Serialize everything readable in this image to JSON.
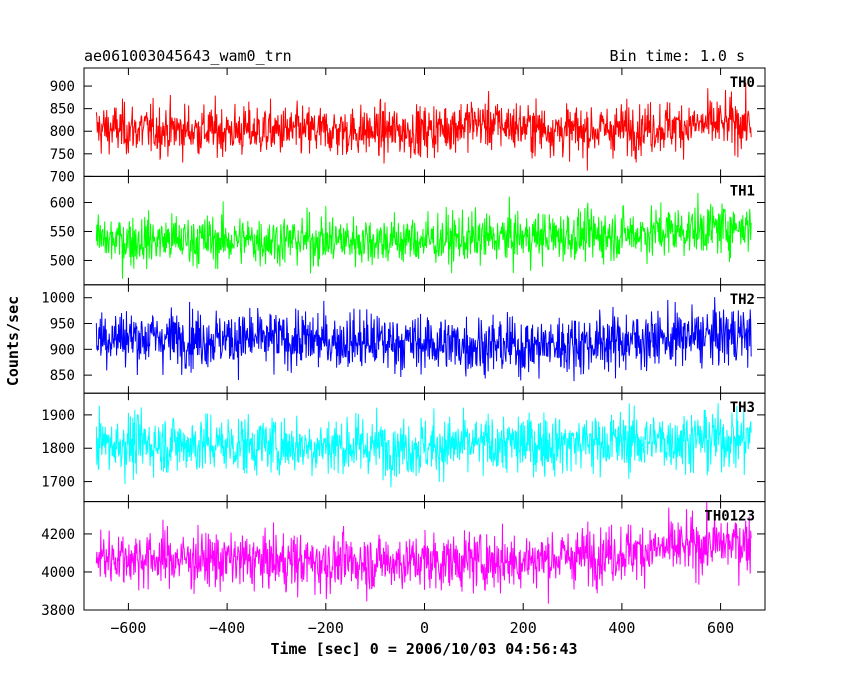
{
  "chart_data": {
    "type": "line",
    "title": "ae061003045643_wam0_trn",
    "subtitle": "Bin time: 1.0 s",
    "xlabel": "Time [sec] 0 = 2006/10/03 04:56:43",
    "ylabel": "Counts/sec",
    "xlim": [
      -690,
      690
    ],
    "x_data_range": [
      -665,
      662
    ],
    "x_ticks": [
      -600,
      -400,
      -200,
      0,
      200,
      400,
      600
    ],
    "x_tick_labels": [
      "−600",
      "−400",
      "−200",
      "0",
      "200",
      "400",
      "600"
    ],
    "grid": false,
    "panels": [
      {
        "series": "TH0",
        "color": "#ff0000",
        "ylim": [
          700,
          940
        ],
        "y_ticks": [
          700,
          750,
          800,
          850,
          900
        ],
        "y_tick_labels": [
          "700",
          "750",
          "800",
          "850",
          "900"
        ],
        "level": [
          [
            -665,
            805
          ],
          [
            -300,
            800
          ],
          [
            0,
            800
          ],
          [
            100,
            820
          ],
          [
            300,
            800
          ],
          [
            662,
            820
          ]
        ],
        "noise": 28
      },
      {
        "series": "TH1",
        "color": "#00ff00",
        "ylim": [
          458,
          645
        ],
        "y_ticks": [
          500,
          550,
          600
        ],
        "y_tick_labels": [
          "500",
          "550",
          "600"
        ],
        "level": [
          [
            -665,
            535
          ],
          [
            0,
            535
          ],
          [
            400,
            545
          ],
          [
            662,
            560
          ]
        ],
        "noise": 22
      },
      {
        "series": "TH2",
        "color": "#0000ff",
        "ylim": [
          815,
          1025
        ],
        "y_ticks": [
          850,
          900,
          950,
          1000
        ],
        "y_tick_labels": [
          "850",
          "900",
          "950",
          "1000"
        ],
        "level": [
          [
            -665,
            925
          ],
          [
            -100,
            915
          ],
          [
            200,
            905
          ],
          [
            662,
            930
          ]
        ],
        "noise": 28
      },
      {
        "series": "TH3",
        "color": "#00ffff",
        "ylim": [
          1640,
          1965
        ],
        "y_ticks": [
          1700,
          1800,
          1900
        ],
        "y_tick_labels": [
          "1700",
          "1800",
          "1900"
        ],
        "level": [
          [
            -665,
            1815
          ],
          [
            0,
            1805
          ],
          [
            662,
            1830
          ]
        ],
        "noise": 45
      },
      {
        "series": "TH0123",
        "color": "#ff00ff",
        "ylim": [
          3800,
          4370
        ],
        "y_ticks": [
          3800,
          4000,
          4200
        ],
        "y_tick_labels": [
          "3800",
          "4000",
          "4200"
        ],
        "level": [
          [
            -665,
            4080
          ],
          [
            -200,
            4050
          ],
          [
            200,
            4060
          ],
          [
            662,
            4160
          ]
        ],
        "noise": 75
      }
    ]
  }
}
